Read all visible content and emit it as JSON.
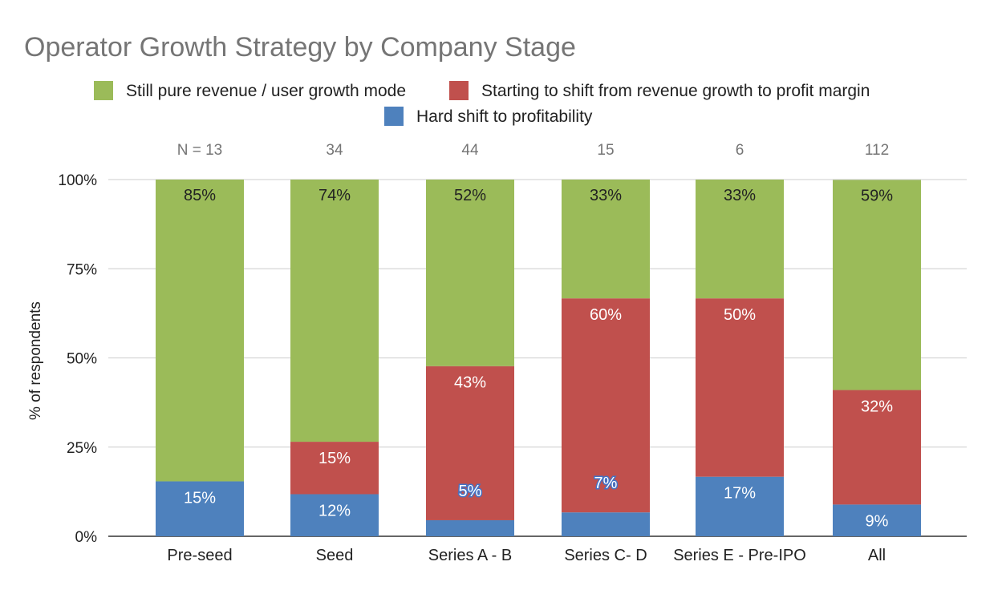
{
  "chart_data": {
    "type": "bar",
    "stacked": true,
    "title": "Operator Growth Strategy by Company Stage",
    "ylabel": "% of respondents",
    "xlabel": "",
    "ylim": [
      0,
      100
    ],
    "y_ticks": [
      "0%",
      "25%",
      "50%",
      "75%",
      "100%"
    ],
    "categories": [
      "Pre-seed",
      "Seed",
      "Series A - B",
      "Series C- D",
      "Series E - Pre-IPO",
      "All"
    ],
    "n_labels": [
      "N = 13",
      "34",
      "44",
      "15",
      "6",
      "112"
    ],
    "grid": true,
    "legend_position": "top",
    "series": [
      {
        "name": "Hard shift to profitability",
        "color": "#4e81bd",
        "values": [
          15.4,
          11.8,
          4.5,
          6.7,
          16.7,
          8.9
        ],
        "labels": [
          "15%",
          "12%",
          "5%",
          "7%",
          "17%",
          "9%"
        ]
      },
      {
        "name": "Starting to shift from revenue growth to profit margin",
        "color": "#c0504d",
        "values": [
          0,
          14.7,
          43.2,
          60.0,
          50.0,
          32.1
        ],
        "labels": [
          "",
          "15%",
          "43%",
          "60%",
          "50%",
          "32%"
        ]
      },
      {
        "name": "Still pure revenue / user growth mode",
        "color": "#9bbb59",
        "values": [
          84.6,
          73.5,
          52.3,
          33.3,
          33.3,
          58.9
        ],
        "labels": [
          "85%",
          "74%",
          "52%",
          "33%",
          "33%",
          "59%"
        ]
      }
    ]
  }
}
